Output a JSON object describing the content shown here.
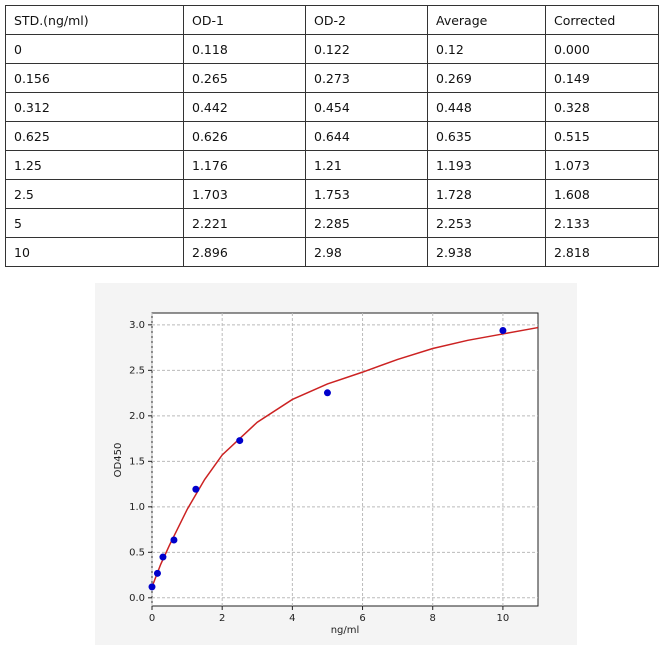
{
  "table": {
    "header": [
      "STD.(ng/ml)",
      "OD-1",
      "OD-2",
      "Average",
      "Corrected"
    ],
    "rows": [
      [
        "0",
        "0.118",
        "0.122",
        "0.12",
        "0.000"
      ],
      [
        "0.156",
        "0.265",
        "0.273",
        "0.269",
        "0.149"
      ],
      [
        "0.312",
        "0.442",
        "0.454",
        "0.448",
        "0.328"
      ],
      [
        "0.625",
        "0.626",
        "0.644",
        "0.635",
        "0.515"
      ],
      [
        "1.25",
        "1.176",
        "1.21",
        "1.193",
        "1.073"
      ],
      [
        "2.5",
        "1.703",
        "1.753",
        "1.728",
        "1.608"
      ],
      [
        "5",
        "2.221",
        "2.285",
        "2.253",
        "2.133"
      ],
      [
        "10",
        "2.896",
        "2.98",
        "2.938",
        "2.818"
      ]
    ]
  },
  "chart_data": {
    "type": "scatter",
    "x_label": "ng/ml",
    "y_label": "OD450",
    "xlim": [
      0,
      11
    ],
    "ylim": [
      -0.09,
      3.13
    ],
    "xticks": [
      0,
      2,
      4,
      6,
      8,
      10
    ],
    "yticks": [
      {
        "value": 0,
        "label": "0.0"
      },
      {
        "value": 0.5,
        "label": "0.5"
      },
      {
        "value": 1,
        "label": "1.0"
      },
      {
        "value": 1.5,
        "label": "1.5"
      },
      {
        "value": 2,
        "label": "2.0"
      },
      {
        "value": 2.5,
        "label": "2.5"
      },
      {
        "value": 3,
        "label": "3.0"
      }
    ],
    "grid": true,
    "series": [
      {
        "kind": "line",
        "color": "#cc2222",
        "x": [
          0,
          0.25,
          0.5,
          1,
          1.5,
          2,
          3,
          4,
          5,
          6,
          7,
          8,
          9,
          10,
          11
        ],
        "values": [
          0.12,
          0.37,
          0.58,
          0.97,
          1.3,
          1.57,
          1.93,
          2.18,
          2.35,
          2.48,
          2.62,
          2.74,
          2.83,
          2.9,
          2.97
        ]
      },
      {
        "kind": "points",
        "color": "#0000cc",
        "x": [
          0,
          0.156,
          0.312,
          0.625,
          1.25,
          2.5,
          5,
          10
        ],
        "values": [
          0.12,
          0.269,
          0.448,
          0.635,
          1.193,
          1.728,
          2.253,
          2.938
        ]
      }
    ]
  }
}
